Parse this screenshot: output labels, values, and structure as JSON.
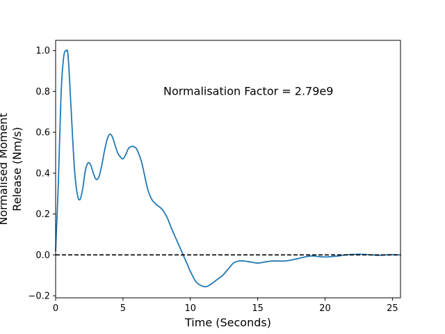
{
  "chart_data": {
    "type": "line",
    "title": "",
    "xlabel": "Time (Seconds)",
    "ylabel_lines": [
      "Normalised Moment",
      "Release (Nm/s)"
    ],
    "xlim": [
      0,
      25.6
    ],
    "ylim": [
      -0.21,
      1.05
    ],
    "xticks": [
      0,
      5,
      10,
      15,
      20,
      25
    ],
    "yticks": [
      -0.2,
      0.0,
      0.2,
      0.4,
      0.6,
      0.8,
      1.0
    ],
    "xtick_labels": [
      "0",
      "5",
      "10",
      "15",
      "20",
      "25"
    ],
    "ytick_labels": [
      "−0.2",
      "0.0",
      "0.2",
      "0.4",
      "0.6",
      "0.8",
      "1.0"
    ],
    "grid": false,
    "annotation": {
      "text": "Normalisation Factor = 2.79e9",
      "x": 8.0,
      "y": 0.8
    },
    "reference_line": {
      "y": 0.0,
      "style": "dashed",
      "color": "#000000"
    },
    "series": [
      {
        "color": "#1f77b4",
        "x": [
          0,
          0.2,
          0.4,
          0.6,
          0.8,
          0.9,
          1.0,
          1.2,
          1.4,
          1.6,
          1.8,
          2.0,
          2.2,
          2.4,
          2.6,
          2.8,
          3.0,
          3.2,
          3.4,
          3.6,
          3.8,
          4.0,
          4.2,
          4.4,
          4.6,
          4.8,
          5.0,
          5.2,
          5.4,
          5.6,
          5.8,
          6.0,
          6.2,
          6.4,
          6.6,
          6.8,
          7.0,
          7.2,
          7.5,
          7.8,
          8.0,
          8.3,
          8.6,
          9.0,
          9.4,
          9.8,
          10.0,
          10.4,
          10.8,
          11.2,
          11.6,
          11.8,
          12.0,
          12.4,
          12.8,
          13.2,
          13.6,
          14.0,
          14.5,
          15.0,
          15.5,
          16.0,
          16.5,
          17.0,
          17.5,
          18.0,
          18.5,
          19.0,
          19.5,
          20.0,
          20.5,
          21.0,
          21.5,
          22.0,
          22.5,
          23.0,
          23.5,
          24.0,
          24.5,
          25.0,
          25.6
        ],
        "y": [
          0.02,
          0.35,
          0.78,
          0.97,
          1.0,
          0.99,
          0.9,
          0.65,
          0.42,
          0.3,
          0.27,
          0.32,
          0.41,
          0.45,
          0.44,
          0.4,
          0.37,
          0.38,
          0.43,
          0.5,
          0.56,
          0.59,
          0.58,
          0.54,
          0.5,
          0.48,
          0.47,
          0.49,
          0.52,
          0.53,
          0.53,
          0.52,
          0.49,
          0.45,
          0.39,
          0.33,
          0.29,
          0.265,
          0.245,
          0.23,
          0.215,
          0.18,
          0.13,
          0.07,
          0.01,
          -0.05,
          -0.08,
          -0.13,
          -0.15,
          -0.155,
          -0.14,
          -0.13,
          -0.12,
          -0.1,
          -0.07,
          -0.04,
          -0.03,
          -0.03,
          -0.035,
          -0.04,
          -0.035,
          -0.03,
          -0.03,
          -0.03,
          -0.025,
          -0.018,
          -0.01,
          -0.005,
          -0.008,
          -0.01,
          -0.008,
          -0.005,
          0.0,
          0.002,
          0.003,
          0.002,
          0.0,
          -0.002,
          0.0,
          0.001,
          0.0
        ]
      }
    ]
  }
}
